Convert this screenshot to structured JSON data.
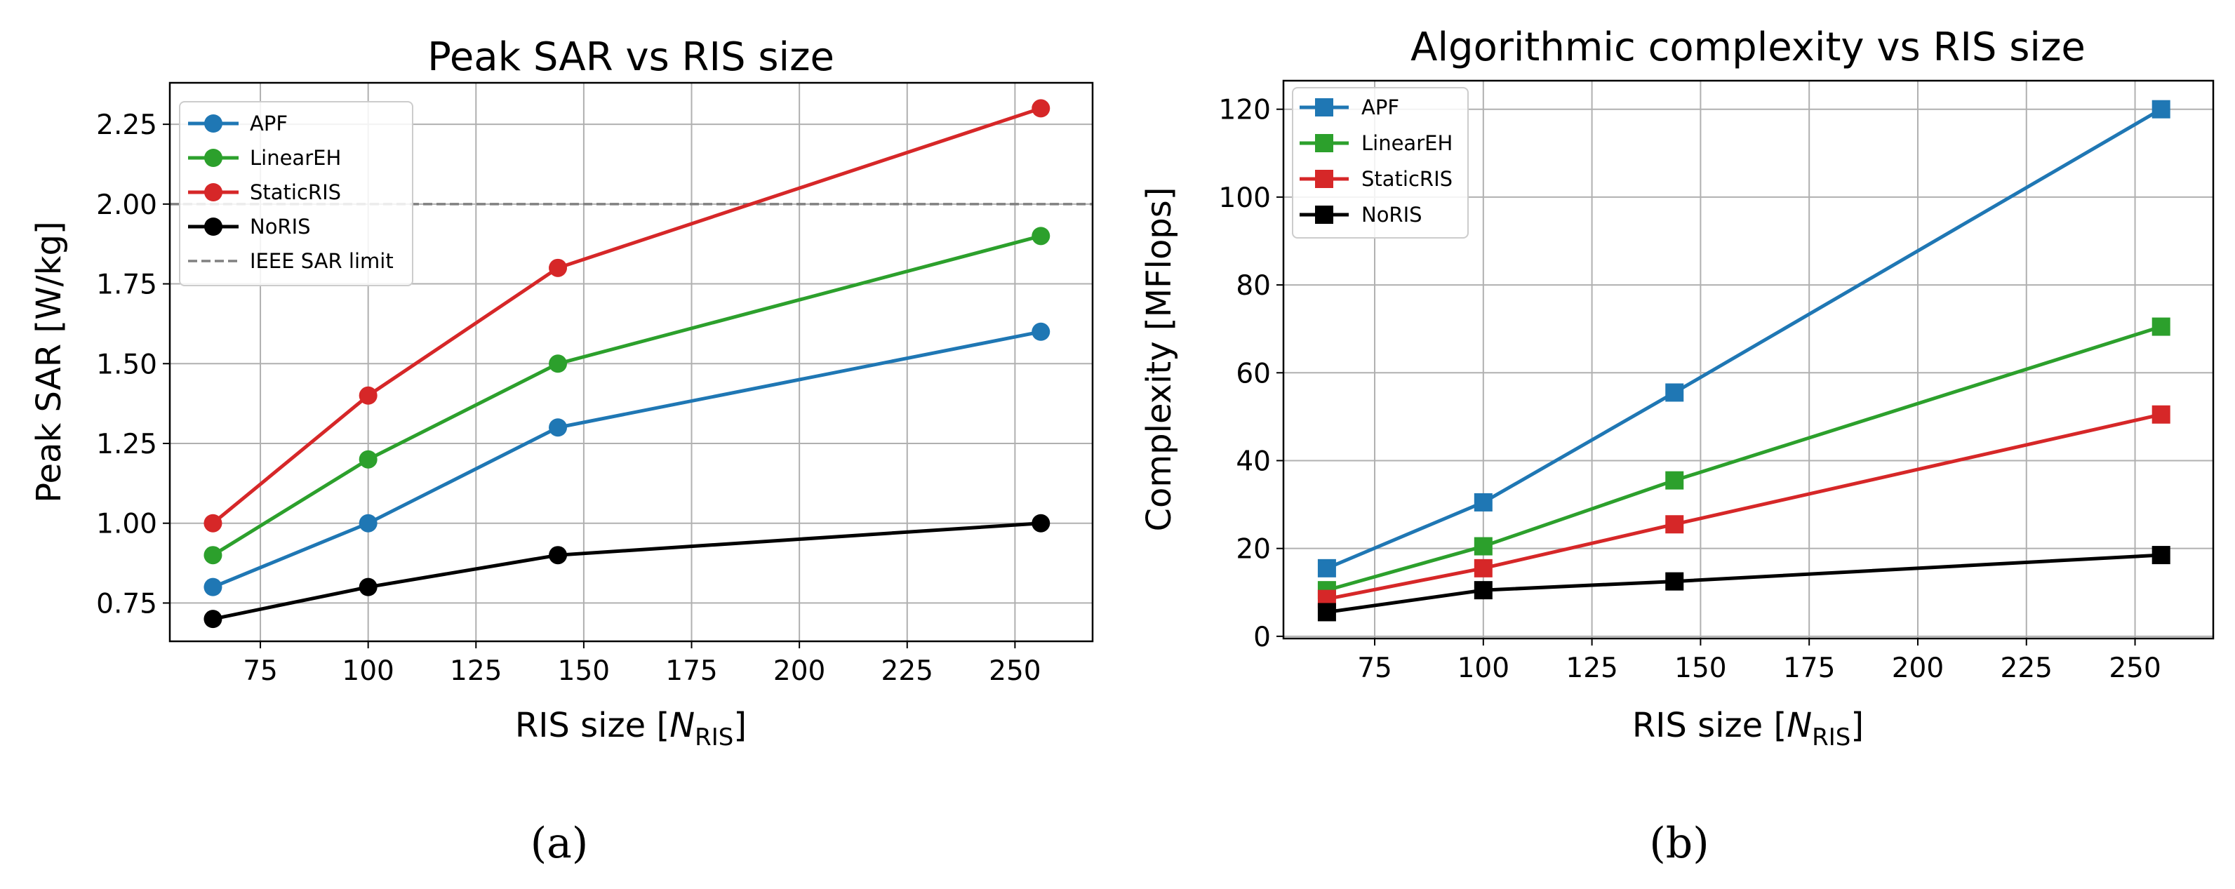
{
  "panel_labels": [
    "(a)",
    "(b)"
  ],
  "chart_data": [
    {
      "type": "line",
      "title": "Peak SAR vs RIS size",
      "xlabel_main": "RIS size [",
      "xlabel_italic": "N",
      "xlabel_sub": "RIS",
      "xlabel_close": "]",
      "ylabel": "Peak SAR [W/kg]",
      "xlim": [
        54,
        268
      ],
      "ylim": [
        0.63,
        2.38
      ],
      "xticks": [
        75,
        100,
        125,
        150,
        175,
        200,
        225,
        250
      ],
      "xtick_labels": [
        "75",
        "100",
        "125",
        "150",
        "175",
        "200",
        "225",
        "250"
      ],
      "yticks": [
        0.75,
        1.0,
        1.25,
        1.5,
        1.75,
        2.0,
        2.25
      ],
      "ytick_labels": [
        "0.75",
        "1.00",
        "1.25",
        "1.50",
        "1.75",
        "2.00",
        "2.25"
      ],
      "grid": true,
      "marker": "circle",
      "legend_position": "top-left",
      "x": [
        64,
        100,
        144,
        256
      ],
      "series": [
        {
          "name": "APF",
          "color": "#1f77b4",
          "values": [
            0.8,
            1.0,
            1.3,
            1.6
          ]
        },
        {
          "name": "LinearEH",
          "color": "#2ca02c",
          "values": [
            0.9,
            1.2,
            1.5,
            1.9
          ]
        },
        {
          "name": "StaticRIS",
          "color": "#d62728",
          "values": [
            1.0,
            1.4,
            1.8,
            2.3
          ]
        },
        {
          "name": "NoRIS",
          "color": "#000000",
          "values": [
            0.7,
            0.8,
            0.9,
            1.0
          ]
        }
      ],
      "hline": {
        "name": "IEEE SAR limit",
        "value": 2.0,
        "color": "#808080",
        "style": "dashed"
      }
    },
    {
      "type": "line",
      "title": "Algorithmic complexity vs RIS size",
      "xlabel_main": "RIS size [",
      "xlabel_italic": "N",
      "xlabel_sub": "RIS",
      "xlabel_close": "]",
      "ylabel": "Complexity [MFlops]",
      "xlim": [
        54,
        268
      ],
      "ylim": [
        -0.5,
        126.5
      ],
      "xticks": [
        75,
        100,
        125,
        150,
        175,
        200,
        225,
        250
      ],
      "xtick_labels": [
        "75",
        "100",
        "125",
        "150",
        "175",
        "200",
        "225",
        "250"
      ],
      "yticks": [
        0,
        20,
        40,
        60,
        80,
        100,
        120
      ],
      "ytick_labels": [
        "0",
        "20",
        "40",
        "60",
        "80",
        "100",
        "120"
      ],
      "grid": true,
      "marker": "square",
      "legend_position": "top-left",
      "x": [
        64,
        100,
        144,
        256
      ],
      "series": [
        {
          "name": "APF",
          "color": "#1f77b4",
          "values": [
            15.5,
            30.5,
            55.5,
            120
          ]
        },
        {
          "name": "LinearEH",
          "color": "#2ca02c",
          "values": [
            10.5,
            20.5,
            35.5,
            70.5
          ]
        },
        {
          "name": "StaticRIS",
          "color": "#d62728",
          "values": [
            8.5,
            15.5,
            25.5,
            50.5
          ]
        },
        {
          "name": "NoRIS",
          "color": "#000000",
          "values": [
            5.5,
            10.5,
            12.5,
            18.5
          ]
        }
      ]
    }
  ]
}
